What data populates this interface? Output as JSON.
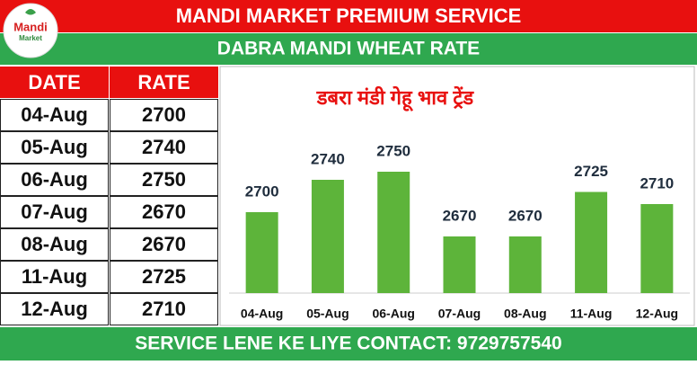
{
  "header": {
    "title": "MANDI MARKET PREMIUM SERVICE",
    "subtitle": "DABRA MANDI WHEAT RATE",
    "logo": [
      "Mandi",
      "Market"
    ]
  },
  "table": {
    "columns": [
      "DATE",
      "RATE"
    ],
    "rows": [
      [
        "04-Aug",
        "2700"
      ],
      [
        "05-Aug",
        "2740"
      ],
      [
        "06-Aug",
        "2750"
      ],
      [
        "07-Aug",
        "2670"
      ],
      [
        "08-Aug",
        "2670"
      ],
      [
        "11-Aug",
        "2725"
      ],
      [
        "12-Aug",
        "2710"
      ]
    ]
  },
  "chart_data": {
    "type": "bar",
    "title": "डबरा मंडी गेहू भाव ट्रेंड",
    "categories": [
      "04-Aug",
      "05-Aug",
      "06-Aug",
      "07-Aug",
      "08-Aug",
      "11-Aug",
      "12-Aug"
    ],
    "values": [
      2700,
      2740,
      2750,
      2670,
      2670,
      2725,
      2710
    ],
    "color": "#5db43a",
    "ylim": [
      2600,
      2800
    ]
  },
  "footer": {
    "text": "SERVICE LENE KE LIYE CONTACT: 9729757540"
  }
}
